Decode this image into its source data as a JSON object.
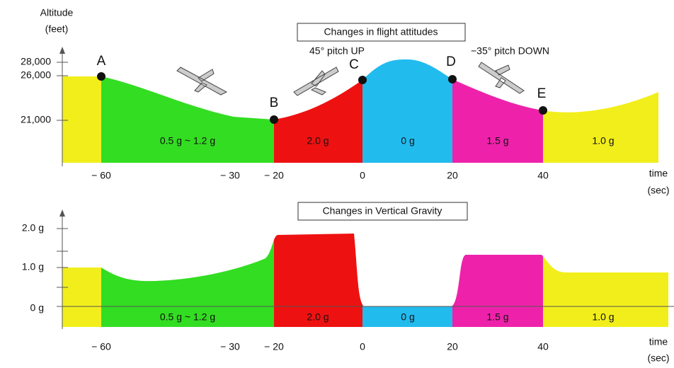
{
  "top": {
    "title": "Changes in flight attitudes",
    "y_axis_label": [
      "Altitude",
      "(feet)"
    ],
    "y_ticks": [
      "28,000",
      "26,000",
      "21,000"
    ],
    "x_ticks": [
      "− 60",
      "− 30",
      "− 20",
      "0",
      "20",
      "40"
    ],
    "x_axis_label": [
      "time",
      "(sec)"
    ],
    "points": [
      "A",
      "B",
      "C",
      "D",
      "E"
    ],
    "phases": [
      "0.5 g ~ 1.2 g",
      "2.0 g",
      "0 g",
      "1.5 g",
      "1.0 g"
    ],
    "annotations": [
      "45° pitch UP",
      "−35° pitch DOWN"
    ]
  },
  "bottom": {
    "title": "Changes in Vertical Gravity",
    "y_ticks": [
      "2.0 g",
      "1.0 g",
      "0 g"
    ],
    "x_ticks": [
      "− 60",
      "− 30",
      "− 20",
      "0",
      "20",
      "40"
    ],
    "x_axis_label": [
      "time",
      "(sec)"
    ],
    "phases": [
      "0.5 g ~ 1.2 g",
      "2.0 g",
      "0 g",
      "1.5 g",
      "1.0 g"
    ]
  }
}
